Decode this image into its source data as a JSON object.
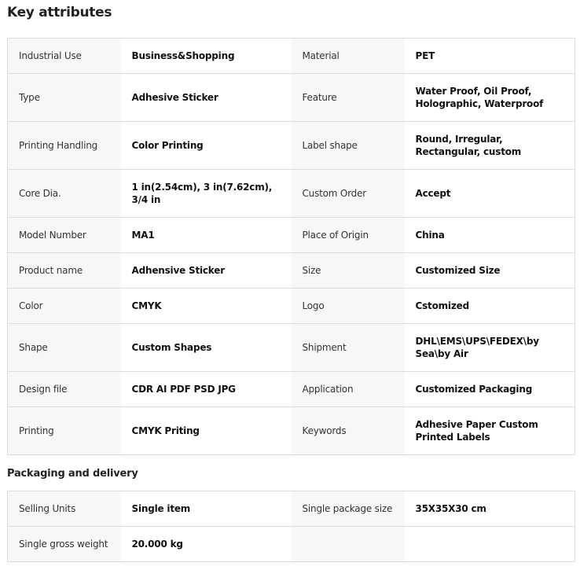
{
  "key_attributes": {
    "title": "Key attributes",
    "rows": [
      [
        "Industrial Use",
        "Business&Shopping",
        "Material",
        "PET"
      ],
      [
        "Type",
        "Adhesive Sticker",
        "Feature",
        "Water Proof, Oil Proof, Holographic, Waterproof"
      ],
      [
        "Printing Handling",
        "Color Printing",
        "Label shape",
        "Round, Irregular, Rectangular, custom"
      ],
      [
        "Core Dia.",
        "1 in(2.54cm), 3 in(7.62cm), 3/4 in",
        "Custom Order",
        "Accept"
      ],
      [
        "Model Number",
        "MA1",
        "Place of Origin",
        "China"
      ],
      [
        "Product name",
        "Adhensive Sticker",
        "Size",
        "Customized Size"
      ],
      [
        "Color",
        "CMYK",
        "Logo",
        "Cstomized"
      ],
      [
        "Shape",
        "Custom Shapes",
        "Shipment",
        "DHL\\EMS\\UPS\\FEDEX\\by Sea\\by Air"
      ],
      [
        "Design file",
        "CDR AI PDF PSD JPG",
        "Application",
        "Customized Packaging"
      ],
      [
        "Printing",
        "CMYK Priting",
        "Keywords",
        "Adhesive Paper Custom Printed Labels"
      ]
    ]
  },
  "packaging": {
    "title": "Packaging and delivery",
    "rows": [
      [
        "Selling Units",
        "Single item",
        "Single package size",
        "35X35X30 cm"
      ],
      [
        "Single gross weight",
        "20.000 kg",
        "",
        ""
      ]
    ]
  }
}
